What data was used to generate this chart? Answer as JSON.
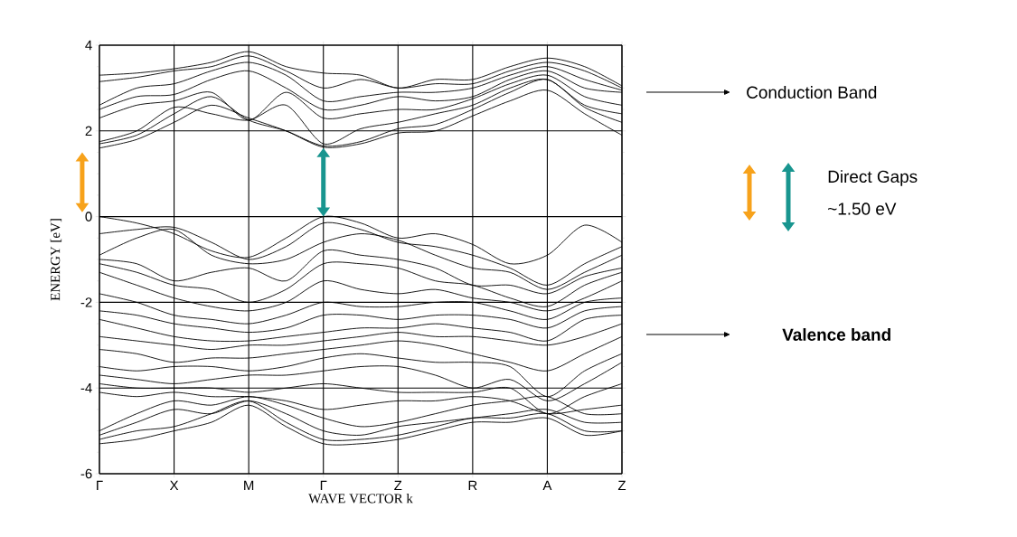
{
  "chart_data": {
    "type": "line",
    "xlabel": "WAVE VECTOR k",
    "ylabel": "ENERGY [eV]",
    "annotations": [
      "Conduction Band",
      "Direct Gaps",
      "~1.50 eV",
      "Valence band"
    ],
    "categories": [
      "Γ",
      null,
      "X",
      null,
      "M",
      null,
      "Γ",
      null,
      "Z",
      null,
      "R",
      null,
      "A",
      null,
      "Z"
    ],
    "ylim": [
      -6,
      4
    ],
    "yticks": [
      -6,
      -4,
      -2,
      0,
      2,
      4
    ],
    "grid": true,
    "marker": "none",
    "line_style": "solid",
    "series": [
      {
        "color": "#000000",
        "values": [
          1.6,
          1.8,
          2.2,
          2.6,
          2.3,
          2.0,
          1.62,
          1.7,
          1.95,
          2.0,
          2.35,
          2.7,
          2.95,
          2.4,
          1.9
        ]
      },
      {
        "color": "#000000",
        "values": [
          1.7,
          1.9,
          2.4,
          2.8,
          2.25,
          2.0,
          1.65,
          1.75,
          2.05,
          2.15,
          2.5,
          2.9,
          3.2,
          2.55,
          2.2
        ]
      },
      {
        "color": "#000000",
        "values": [
          1.75,
          2.0,
          2.55,
          2.4,
          2.25,
          2.6,
          1.7,
          2.05,
          2.2,
          2.4,
          2.6,
          3.0,
          3.2,
          2.6,
          2.4
        ]
      },
      {
        "color": "#000000",
        "values": [
          2.3,
          2.6,
          2.7,
          2.9,
          2.25,
          2.9,
          2.3,
          2.4,
          2.5,
          2.5,
          2.75,
          3.1,
          3.3,
          2.8,
          2.6
        ]
      },
      {
        "color": "#000000",
        "values": [
          2.5,
          2.8,
          2.85,
          3.2,
          3.4,
          3.0,
          2.5,
          2.6,
          2.8,
          2.7,
          2.8,
          3.2,
          3.4,
          3.0,
          2.9
        ]
      },
      {
        "color": "#000000",
        "values": [
          2.6,
          3.0,
          3.1,
          3.4,
          3.6,
          3.3,
          2.7,
          2.8,
          2.9,
          2.9,
          3.0,
          3.3,
          3.5,
          3.2,
          2.95
        ]
      },
      {
        "color": "#000000",
        "values": [
          3.15,
          3.25,
          3.4,
          3.5,
          3.75,
          3.4,
          3.0,
          3.2,
          3.0,
          3.1,
          3.1,
          3.4,
          3.6,
          3.4,
          3.0
        ]
      },
      {
        "color": "#000000",
        "values": [
          3.3,
          3.35,
          3.45,
          3.6,
          3.85,
          3.5,
          3.35,
          3.3,
          3.0,
          3.2,
          3.2,
          3.5,
          3.7,
          3.5,
          3.05
        ]
      },
      {
        "color": "#000000",
        "values": [
          0,
          -0.15,
          -0.4,
          -0.8,
          -0.95,
          -0.5,
          0,
          -0.15,
          -0.5,
          -0.4,
          -0.65,
          -1.1,
          -0.9,
          -0.2,
          -0.6
        ]
      },
      {
        "color": "#000000",
        "values": [
          -0.4,
          -0.3,
          -0.25,
          -0.6,
          -1.0,
          -0.7,
          -0.15,
          -0.3,
          -0.6,
          -0.7,
          -0.9,
          -1.2,
          -1.6,
          -1.1,
          -0.7
        ]
      },
      {
        "color": "#000000",
        "values": [
          -0.9,
          -0.5,
          -0.3,
          -0.9,
          -1.1,
          -1.0,
          -0.6,
          -0.4,
          -0.55,
          -0.9,
          -1.2,
          -1.3,
          -1.7,
          -1.3,
          -0.9
        ]
      },
      {
        "color": "#000000",
        "values": [
          -1.0,
          -1.1,
          -1.5,
          -1.3,
          -1.2,
          -1.5,
          -0.8,
          -0.9,
          -1.0,
          -1.2,
          -1.6,
          -1.6,
          -1.8,
          -1.4,
          -1.2
        ]
      },
      {
        "color": "#000000",
        "values": [
          -1.1,
          -1.3,
          -1.6,
          -1.7,
          -2.0,
          -1.7,
          -1.1,
          -1.1,
          -1.2,
          -1.5,
          -1.6,
          -1.9,
          -2.1,
          -1.6,
          -1.3
        ]
      },
      {
        "color": "#000000",
        "values": [
          -1.3,
          -1.6,
          -1.9,
          -2.1,
          -2.2,
          -2.0,
          -1.5,
          -1.7,
          -1.8,
          -1.7,
          -1.9,
          -2.0,
          -2.2,
          -1.9,
          -1.5
        ]
      },
      {
        "color": "#000000",
        "values": [
          -1.8,
          -2.0,
          -2.3,
          -2.4,
          -2.5,
          -2.3,
          -2.0,
          -2.1,
          -2.1,
          -2.0,
          -2.0,
          -2.2,
          -2.4,
          -2.0,
          -1.9
        ]
      },
      {
        "color": "#000000",
        "values": [
          -2.2,
          -2.3,
          -2.5,
          -2.6,
          -2.7,
          -2.6,
          -2.3,
          -2.3,
          -2.4,
          -2.3,
          -2.3,
          -2.4,
          -2.6,
          -2.2,
          -2.1
        ]
      },
      {
        "color": "#000000",
        "values": [
          -2.4,
          -2.6,
          -2.8,
          -2.9,
          -2.9,
          -2.8,
          -2.7,
          -2.6,
          -2.6,
          -2.5,
          -2.6,
          -2.7,
          -2.9,
          -2.4,
          -2.3
        ]
      },
      {
        "color": "#000000",
        "values": [
          -2.8,
          -2.9,
          -3.0,
          -3.1,
          -3.0,
          -3.0,
          -2.9,
          -2.8,
          -2.7,
          -2.8,
          -2.8,
          -2.9,
          -3.0,
          -2.8,
          -2.5
        ]
      },
      {
        "color": "#000000",
        "values": [
          -3.1,
          -3.2,
          -3.4,
          -3.3,
          -3.3,
          -3.2,
          -3.1,
          -3.0,
          -2.9,
          -3.0,
          -3.2,
          -3.4,
          -3.6,
          -3.2,
          -2.8
        ]
      },
      {
        "color": "#000000",
        "values": [
          -3.5,
          -3.6,
          -3.5,
          -3.5,
          -3.6,
          -3.5,
          -3.3,
          -3.2,
          -3.3,
          -3.4,
          -3.4,
          -3.5,
          -4.2,
          -3.6,
          -3.2
        ]
      },
      {
        "color": "#000000",
        "values": [
          -3.7,
          -3.8,
          -3.9,
          -3.8,
          -3.7,
          -3.7,
          -3.6,
          -3.5,
          -3.5,
          -3.7,
          -4.0,
          -3.8,
          -4.3,
          -3.9,
          -3.4
        ]
      },
      {
        "color": "#000000",
        "values": [
          -3.9,
          -4.0,
          -4.0,
          -4.0,
          -4.1,
          -4.0,
          -3.9,
          -4.0,
          -4.1,
          -4.1,
          -4.1,
          -4.0,
          -4.6,
          -4.2,
          -3.9
        ]
      },
      {
        "color": "#000000",
        "values": [
          -4.1,
          -4.2,
          -4.1,
          -4.2,
          -4.2,
          -4.3,
          -4.5,
          -4.4,
          -4.3,
          -4.3,
          -4.2,
          -4.3,
          -4.6,
          -4.5,
          -4.4
        ]
      },
      {
        "color": "#000000",
        "values": [
          -5.0,
          -4.6,
          -4.3,
          -4.4,
          -4.2,
          -4.4,
          -4.7,
          -4.9,
          -4.8,
          -4.6,
          -4.4,
          -4.3,
          -4.2,
          -4.6,
          -4.6
        ]
      },
      {
        "color": "#000000",
        "values": [
          -5.1,
          -4.8,
          -4.5,
          -4.6,
          -4.3,
          -4.6,
          -5.0,
          -5.1,
          -4.9,
          -4.8,
          -4.7,
          -4.6,
          -4.5,
          -4.8,
          -4.8
        ]
      },
      {
        "color": "#000000",
        "values": [
          -5.2,
          -5.0,
          -4.9,
          -4.6,
          -4.3,
          -4.8,
          -5.2,
          -5.2,
          -5.1,
          -4.9,
          -4.7,
          -4.7,
          -4.6,
          -5.0,
          -5.0
        ]
      },
      {
        "color": "#000000",
        "values": [
          -5.3,
          -5.2,
          -5.0,
          -4.8,
          -4.4,
          -4.9,
          -5.3,
          -5.3,
          -5.2,
          -5.0,
          -4.8,
          -4.8,
          -4.7,
          -5.1,
          -5.0
        ]
      }
    ]
  }
}
